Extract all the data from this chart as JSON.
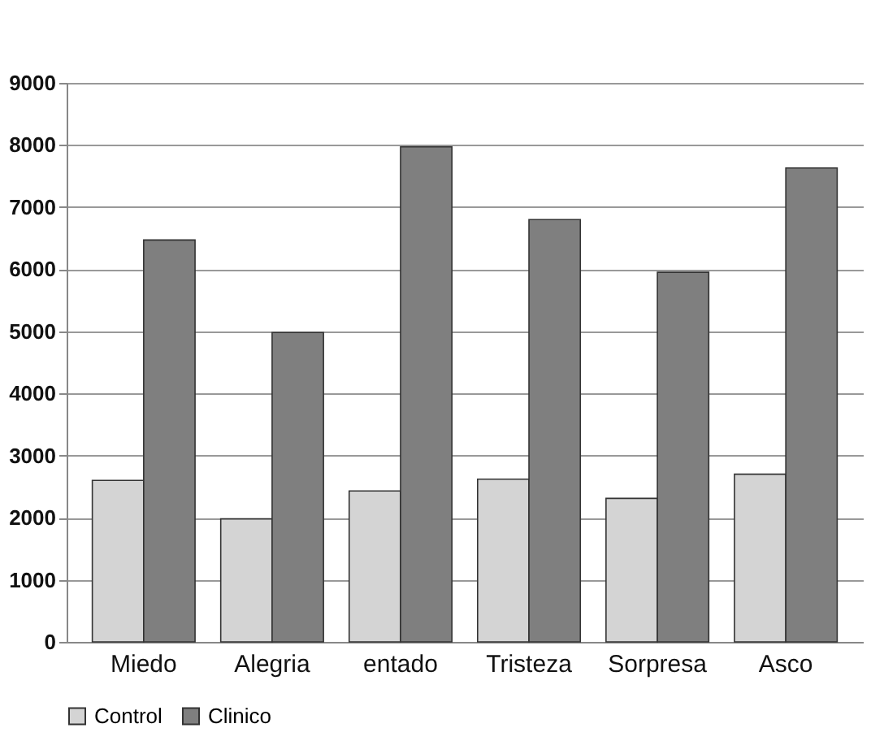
{
  "chart_data": {
    "type": "bar",
    "categories": [
      "Miedo",
      "Alegria",
      "entado",
      "Tristeza",
      "Sorpresa",
      "Asco"
    ],
    "series": [
      {
        "name": "Control",
        "color": "#d4d4d4",
        "values": [
          2600,
          1980,
          2430,
          2620,
          2310,
          2700
        ]
      },
      {
        "name": "Clinico",
        "color": "#7f7f7f",
        "values": [
          6470,
          4980,
          7970,
          6800,
          5950,
          7630
        ]
      }
    ],
    "ylim": [
      0,
      9000
    ],
    "yticks": [
      0,
      1000,
      2000,
      3000,
      4000,
      5000,
      6000,
      7000,
      8000,
      9000
    ],
    "grid": "y",
    "legend": "bottom"
  }
}
